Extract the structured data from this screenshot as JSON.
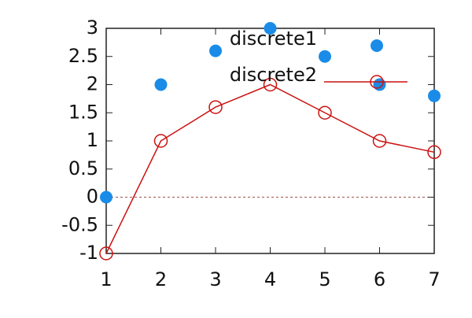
{
  "chart_data": {
    "type": "line",
    "x": [
      1,
      2,
      3,
      4,
      5,
      6,
      7
    ],
    "series": [
      {
        "name": "discrete1",
        "color": "#1a8ce8",
        "style": "points",
        "values": [
          0,
          2,
          2.6,
          3,
          2.5,
          2,
          1.8
        ]
      },
      {
        "name": "discrete2",
        "color": "#cc1111",
        "style": "linespoints",
        "values": [
          -1,
          1,
          1.6,
          2,
          1.5,
          1,
          0.8
        ]
      }
    ],
    "xlim": [
      1,
      7
    ],
    "xticks": [
      1,
      2,
      3,
      4,
      5,
      6,
      7
    ],
    "ylim": [
      -1,
      3
    ],
    "yticks": [
      -1,
      -0.5,
      0,
      0.5,
      1,
      1.5,
      2,
      2.5,
      3
    ],
    "zeroaxis": true,
    "legend": "top-right"
  }
}
